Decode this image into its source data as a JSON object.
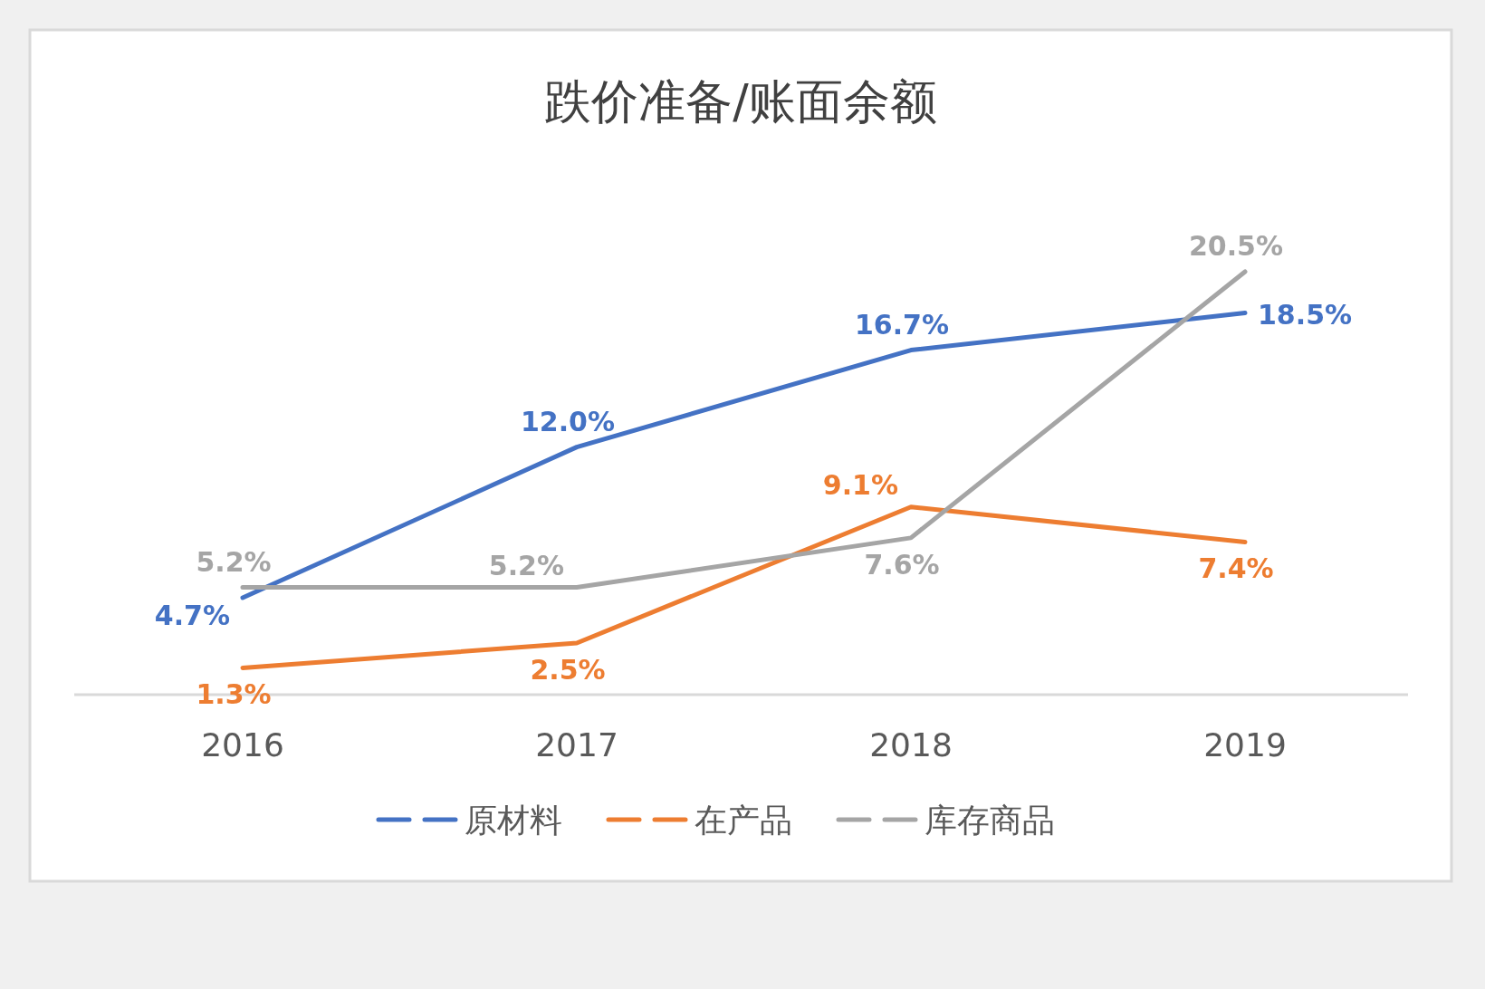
{
  "chart_data": {
    "type": "line",
    "title": "跌价准备/账面余额",
    "categories": [
      "2016",
      "2017",
      "2018",
      "2019"
    ],
    "series": [
      {
        "name": "原材料",
        "color": "#4472c4",
        "values": [
          4.7,
          12.0,
          16.7,
          18.5
        ],
        "value_labels": [
          "4.7%",
          "12.0%",
          "16.7%",
          "18.5%"
        ]
      },
      {
        "name": "在产品",
        "color": "#ed7d31",
        "values": [
          1.3,
          2.5,
          9.1,
          7.4
        ],
        "value_labels": [
          "1.3%",
          "2.5%",
          "9.1%",
          "7.4%"
        ]
      },
      {
        "name": "库存商品",
        "color": "#a5a5a5",
        "values": [
          5.2,
          5.2,
          7.6,
          20.5
        ],
        "value_labels": [
          "5.2%",
          "5.2%",
          "7.6%",
          "20.5%"
        ]
      }
    ],
    "legend": "bottom",
    "grid": false,
    "marker": "none",
    "line_style": "solid"
  }
}
